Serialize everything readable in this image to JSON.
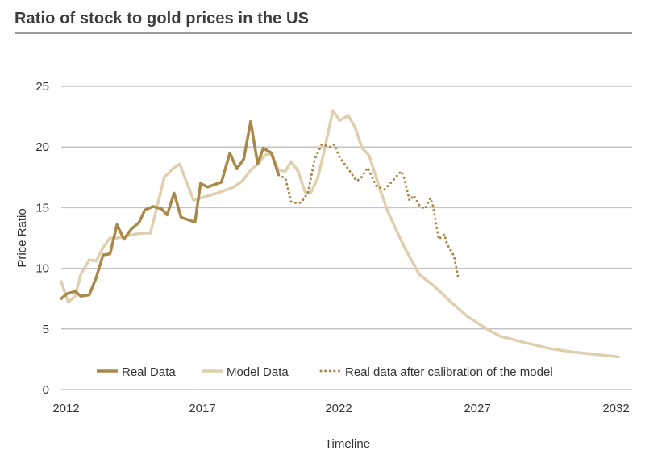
{
  "title": "Ratio of stock to gold prices in the US",
  "chart_data": {
    "type": "line",
    "title": "Ratio of stock to gold prices in the US",
    "xlabel": "Timeline",
    "ylabel": "Price Ratio",
    "xlim": [
      2012,
      2032
    ],
    "ylim": [
      0,
      25
    ],
    "x_ticks": [
      "2012",
      "2017",
      "2022",
      "2027",
      "2032"
    ],
    "y_ticks": [
      "0",
      "5",
      "10",
      "15",
      "20",
      "25"
    ],
    "grid": "horizontal",
    "legend_position": "bottom-center",
    "colors": {
      "real": "#A8894A",
      "model": "#DFCFAE",
      "calibrated": "#A8894A"
    },
    "series": [
      {
        "name": "Real Data",
        "style": "solid",
        "points": [
          [
            2012.0,
            7.5
          ],
          [
            2012.2,
            7.9
          ],
          [
            2012.5,
            8.1
          ],
          [
            2012.7,
            7.7
          ],
          [
            2013.0,
            7.8
          ],
          [
            2013.25,
            9.2
          ],
          [
            2013.5,
            11.1
          ],
          [
            2013.75,
            11.2
          ],
          [
            2014.0,
            13.6
          ],
          [
            2014.25,
            12.4
          ],
          [
            2014.5,
            13.2
          ],
          [
            2014.8,
            13.8
          ],
          [
            2015.0,
            14.8
          ],
          [
            2015.3,
            15.1
          ],
          [
            2015.6,
            14.9
          ],
          [
            2015.8,
            14.4
          ],
          [
            2016.05,
            16.2
          ],
          [
            2016.3,
            14.2
          ],
          [
            2016.8,
            13.8
          ],
          [
            2017.0,
            17.0
          ],
          [
            2017.25,
            16.7
          ],
          [
            2017.75,
            17.1
          ],
          [
            2018.05,
            19.5
          ],
          [
            2018.3,
            18.2
          ],
          [
            2018.55,
            19.0
          ],
          [
            2018.8,
            22.1
          ],
          [
            2019.05,
            18.6
          ],
          [
            2019.25,
            19.9
          ],
          [
            2019.55,
            19.5
          ],
          [
            2019.8,
            17.7
          ]
        ]
      },
      {
        "name": "Model Data",
        "style": "solid",
        "points": [
          [
            2012.0,
            8.9
          ],
          [
            2012.25,
            7.2
          ],
          [
            2012.5,
            7.7
          ],
          [
            2012.7,
            9.5
          ],
          [
            2013.0,
            10.7
          ],
          [
            2013.25,
            10.6
          ],
          [
            2013.5,
            11.7
          ],
          [
            2013.75,
            12.5
          ],
          [
            2014.0,
            12.5
          ],
          [
            2014.3,
            12.6
          ],
          [
            2014.6,
            12.8
          ],
          [
            2014.9,
            12.9
          ],
          [
            2015.2,
            12.9
          ],
          [
            2015.7,
            17.5
          ],
          [
            2016.0,
            18.2
          ],
          [
            2016.25,
            18.6
          ],
          [
            2016.75,
            15.6
          ],
          [
            2017.0,
            15.8
          ],
          [
            2017.6,
            16.2
          ],
          [
            2018.2,
            16.7
          ],
          [
            2018.5,
            17.2
          ],
          [
            2018.8,
            18.1
          ],
          [
            2019.05,
            18.6
          ],
          [
            2019.35,
            19.4
          ],
          [
            2019.55,
            19.3
          ],
          [
            2019.8,
            18.1
          ],
          [
            2020.05,
            18.0
          ],
          [
            2020.25,
            18.8
          ],
          [
            2020.5,
            18.0
          ],
          [
            2020.75,
            16.3
          ],
          [
            2020.95,
            16.2
          ],
          [
            2021.2,
            17.4
          ],
          [
            2021.4,
            19.3
          ],
          [
            2021.75,
            23.0
          ],
          [
            2022.0,
            22.2
          ],
          [
            2022.3,
            22.6
          ],
          [
            2022.55,
            21.6
          ],
          [
            2022.8,
            19.9
          ],
          [
            2023.05,
            19.3
          ],
          [
            2023.4,
            16.8
          ],
          [
            2023.7,
            14.8
          ],
          [
            2024.3,
            11.8
          ],
          [
            2024.85,
            9.5
          ],
          [
            2025.4,
            8.5
          ],
          [
            2026.0,
            7.2
          ],
          [
            2026.6,
            6.0
          ],
          [
            2027.35,
            4.9
          ],
          [
            2027.75,
            4.4
          ],
          [
            2028.6,
            3.9
          ],
          [
            2029.5,
            3.4
          ],
          [
            2030.35,
            3.1
          ],
          [
            2031.2,
            2.9
          ],
          [
            2032.0,
            2.7
          ]
        ]
      },
      {
        "name": "Real data after calibration of the model",
        "style": "dotted",
        "points": [
          [
            2019.8,
            17.7
          ],
          [
            2020.05,
            17.4
          ],
          [
            2020.25,
            15.5
          ],
          [
            2020.4,
            15.4
          ],
          [
            2020.6,
            15.4
          ],
          [
            2020.85,
            16.2
          ],
          [
            2021.1,
            19.0
          ],
          [
            2021.35,
            20.2
          ],
          [
            2021.65,
            20.0
          ],
          [
            2021.8,
            20.2
          ],
          [
            2022.0,
            19.1
          ],
          [
            2022.3,
            18.2
          ],
          [
            2022.6,
            17.2
          ],
          [
            2022.75,
            17.4
          ],
          [
            2023.0,
            18.3
          ],
          [
            2023.3,
            16.8
          ],
          [
            2023.6,
            16.5
          ],
          [
            2023.85,
            17.1
          ],
          [
            2024.2,
            18.0
          ],
          [
            2024.3,
            17.5
          ],
          [
            2024.5,
            15.6
          ],
          [
            2024.65,
            16.0
          ],
          [
            2024.85,
            15.2
          ],
          [
            2025.05,
            14.9
          ],
          [
            2025.25,
            15.8
          ],
          [
            2025.35,
            15.1
          ],
          [
            2025.55,
            12.4
          ],
          [
            2025.75,
            12.8
          ],
          [
            2025.85,
            12.0
          ],
          [
            2026.1,
            11.0
          ],
          [
            2026.25,
            9.2
          ]
        ]
      }
    ]
  }
}
